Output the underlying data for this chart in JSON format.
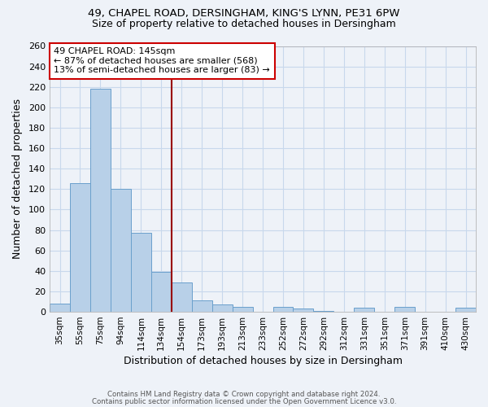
{
  "title1": "49, CHAPEL ROAD, DERSINGHAM, KING'S LYNN, PE31 6PW",
  "title2": "Size of property relative to detached houses in Dersingham",
  "xlabel": "Distribution of detached houses by size in Dersingham",
  "ylabel": "Number of detached properties",
  "bar_color": "#b8d0e8",
  "bar_edge_color": "#6aa0cc",
  "grid_color": "#c8d8ec",
  "bin_labels": [
    "35sqm",
    "55sqm",
    "75sqm",
    "94sqm",
    "114sqm",
    "134sqm",
    "154sqm",
    "173sqm",
    "193sqm",
    "213sqm",
    "233sqm",
    "252sqm",
    "272sqm",
    "292sqm",
    "312sqm",
    "331sqm",
    "351sqm",
    "371sqm",
    "391sqm",
    "410sqm",
    "430sqm"
  ],
  "bin_values": [
    8,
    126,
    218,
    120,
    77,
    39,
    29,
    11,
    7,
    5,
    0,
    5,
    3,
    1,
    0,
    4,
    0,
    5,
    0,
    0,
    4
  ],
  "ylim": [
    0,
    260
  ],
  "yticks": [
    0,
    20,
    40,
    60,
    80,
    100,
    120,
    140,
    160,
    180,
    200,
    220,
    240,
    260
  ],
  "vline_color": "#990000",
  "annotation_title": "49 CHAPEL ROAD: 145sqm",
  "annotation_line1": "← 87% of detached houses are smaller (568)",
  "annotation_line2": "13% of semi-detached houses are larger (83) →",
  "annotation_box_color": "#ffffff",
  "annotation_box_edge_color": "#cc0000",
  "footer1": "Contains HM Land Registry data © Crown copyright and database right 2024.",
  "footer2": "Contains public sector information licensed under the Open Government Licence v3.0.",
  "bg_color": "#eef2f8"
}
